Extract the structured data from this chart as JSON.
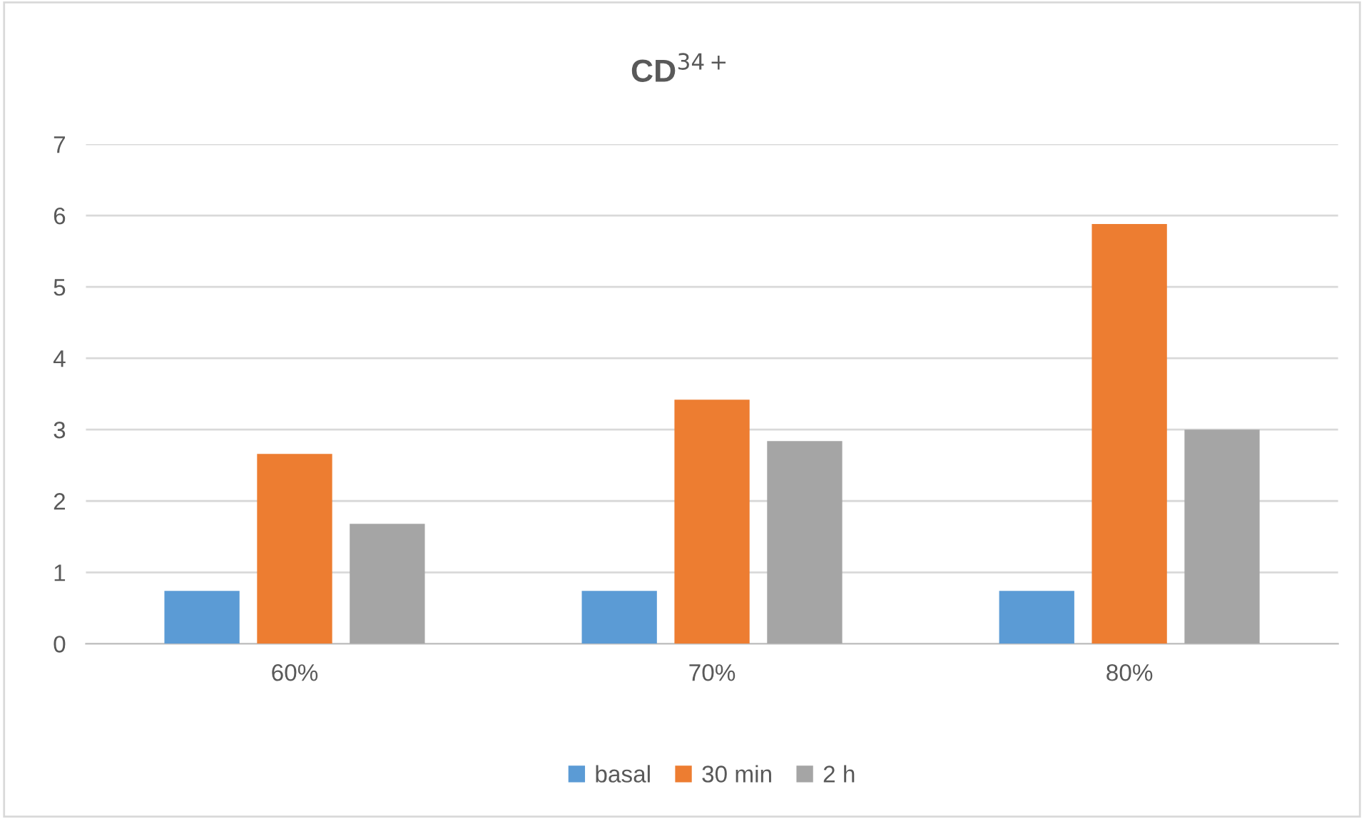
{
  "chart_data": {
    "type": "bar",
    "title": "CD$^{34+}$",
    "categories": [
      "60%",
      "70%",
      "80%"
    ],
    "series": [
      {
        "name": "basal",
        "color": "#5b9bd5",
        "values": [
          0.74,
          0.74,
          0.74
        ]
      },
      {
        "name": "30 min",
        "color": "#ed7d31",
        "values": [
          2.66,
          3.42,
          5.88
        ]
      },
      {
        "name": "2 h",
        "color": "#a5a5a5",
        "values": [
          1.68,
          2.84,
          3.0
        ]
      }
    ],
    "ylim": [
      0,
      7
    ],
    "yticks": [
      0,
      1,
      2,
      3,
      4,
      5,
      6,
      7
    ],
    "grid": "y",
    "legend": "bottom"
  }
}
